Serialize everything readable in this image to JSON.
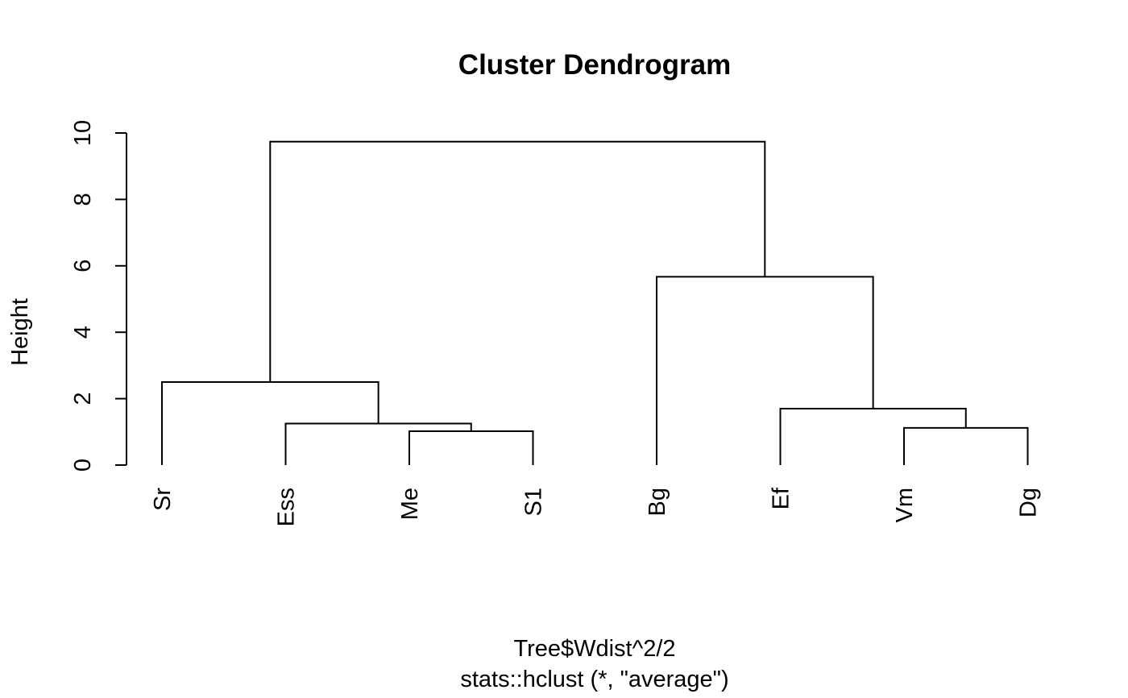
{
  "chart_data": {
    "type": "dendrogram",
    "title": "Cluster Dendrogram",
    "ylabel": "Height",
    "xlabel": "Tree$Wdist^2/2",
    "subtitle": "stats::hclust (*, \"average\")",
    "ylim": [
      0,
      10
    ],
    "yticks": [
      0,
      2,
      4,
      6,
      8,
      10
    ],
    "leaves": [
      "Sr",
      "Ess",
      "Me",
      "S1",
      "Bg",
      "Ef",
      "Vm",
      "Dg"
    ],
    "merges": [
      {
        "left": "Me",
        "right": "S1",
        "height": 1.02
      },
      {
        "left": "Vm",
        "right": "Dg",
        "height": 1.12
      },
      {
        "left": "Ess",
        "right": "Me+S1",
        "height": 1.25
      },
      {
        "left": "Ef",
        "right": "Vm+Dg",
        "height": 1.7
      },
      {
        "left": "Sr",
        "right": "Ess+Me+S1",
        "height": 2.5
      },
      {
        "left": "Bg",
        "right": "Ef+Vm+Dg",
        "height": 5.67
      },
      {
        "left": "Sr+Ess+Me+S1",
        "right": "Bg+Ef+Vm+Dg",
        "height": 9.74
      }
    ]
  }
}
